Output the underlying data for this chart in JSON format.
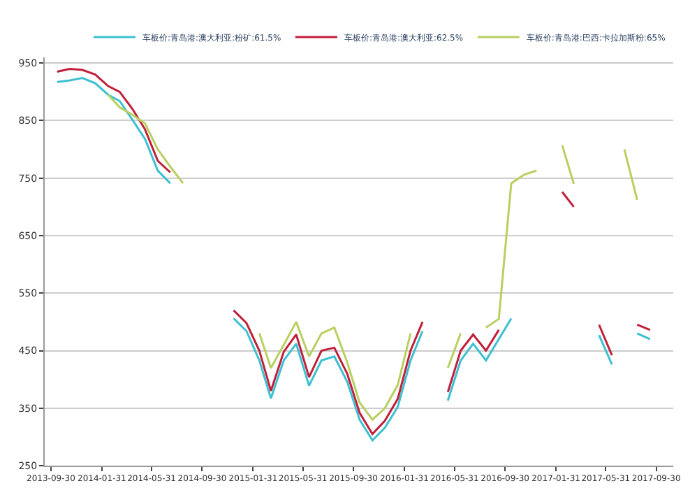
{
  "chart_data": {
    "type": "line",
    "x": [
      "2013-10-15",
      "2013-11-15",
      "2013-12-15",
      "2014-01-15",
      "2014-02-15",
      "2014-03-15",
      "2014-04-15",
      "2014-05-15",
      "2014-06-15",
      "2014-07-15",
      "2014-08-15",
      "2014-09-15",
      "2014-10-15",
      "2014-11-15",
      "2014-12-15",
      "2015-01-15",
      "2015-02-15",
      "2015-03-15",
      "2015-04-15",
      "2015-05-15",
      "2015-06-15",
      "2015-07-15",
      "2015-08-15",
      "2015-09-15",
      "2015-10-15",
      "2015-11-15",
      "2015-12-15",
      "2016-01-15",
      "2016-02-15",
      "2016-03-15",
      "2016-04-15",
      "2016-05-15",
      "2016-06-15",
      "2016-07-15",
      "2016-08-15",
      "2016-09-15",
      "2016-10-15",
      "2016-11-15",
      "2016-12-15",
      "2017-01-15",
      "2017-02-15",
      "2017-03-15",
      "2017-04-15",
      "2017-05-15",
      "2017-06-15",
      "2017-07-15",
      "2017-08-15",
      "2017-09-15"
    ],
    "series": [
      {
        "name": "车板价:青岛港:澳大利亚:粉矿:61.5%",
        "color": "#3cc0d2",
        "values": [
          917,
          920,
          924,
          915,
          895,
          884,
          851,
          818,
          763,
          741,
          null,
          null,
          null,
          null,
          506,
          484,
          433,
          367,
          433,
          462,
          389,
          433,
          440,
          396,
          330,
          294,
          316,
          352,
          433,
          484,
          null,
          363,
          433,
          462,
          433,
          470,
          506,
          null,
          null,
          null,
          null,
          null,
          null,
          477,
          426,
          null,
          480,
          470
        ]
      },
      {
        "name": "车板价:青岛港:澳大利亚:62.5%",
        "color": "#c0203a",
        "values": [
          935,
          940,
          938,
          930,
          910,
          900,
          870,
          835,
          780,
          760,
          null,
          null,
          null,
          null,
          520,
          498,
          450,
          380,
          448,
          478,
          404,
          450,
          455,
          410,
          342,
          305,
          328,
          366,
          450,
          500,
          null,
          378,
          450,
          478,
          450,
          486,
          null,
          null,
          null,
          null,
          726,
          700,
          null,
          495,
          442,
          null,
          495,
          486
        ]
      },
      {
        "name": "车板价:青岛港:巴西:卡拉加斯粉:65%",
        "color": "#b8d060",
        "values": [
          null,
          null,
          null,
          null,
          895,
          873,
          860,
          845,
          800,
          770,
          741,
          null,
          null,
          null,
          null,
          null,
          480,
          420,
          460,
          500,
          440,
          480,
          490,
          430,
          360,
          330,
          350,
          390,
          480,
          null,
          null,
          420,
          480,
          null,
          490,
          505,
          741,
          756,
          763,
          null,
          807,
          740,
          null,
          null,
          null,
          800,
          712,
          null
        ]
      }
    ],
    "xlim": [
      "2013-09-15",
      "2017-11-10"
    ],
    "xticks": [
      "2013-09-30",
      "2014-01-31",
      "2014-05-31",
      "2014-09-30",
      "2015-01-31",
      "2015-05-31",
      "2015-09-30",
      "2016-01-31",
      "2016-05-31",
      "2016-09-30",
      "2017-01-31",
      "2017-05-31",
      "2017-09-30"
    ],
    "ylim": [
      250,
      960
    ],
    "yticks": [
      250,
      350,
      450,
      550,
      650,
      750,
      850,
      950
    ],
    "grid": "y",
    "legend": "top",
    "marker": "none",
    "line_style": "solid"
  }
}
